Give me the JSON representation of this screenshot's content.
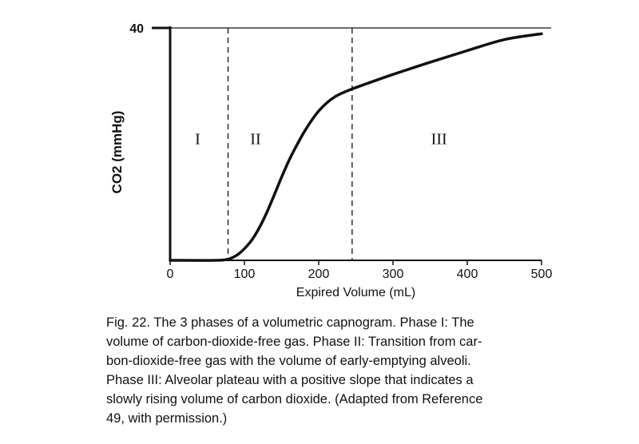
{
  "chart_data": {
    "type": "line",
    "xlabel": "Expired Volume (mL)",
    "ylabel": "CO2 (mmHg)",
    "xlim": [
      0,
      500
    ],
    "ylim": [
      0,
      40
    ],
    "x_ticks": [
      "0",
      "100",
      "200",
      "300",
      "400",
      "500"
    ],
    "y_ticks": [
      "40"
    ],
    "grid": false,
    "phase_boundaries": [
      78,
      245
    ],
    "phase_labels": [
      {
        "label": "I",
        "x": 37
      },
      {
        "label": "II",
        "x": 115
      },
      {
        "label": "III",
        "x": 362
      }
    ],
    "series": [
      {
        "x": [
          0,
          60,
          78,
          90,
          100,
          110,
          120,
          130,
          140,
          150,
          160,
          170,
          180,
          190,
          200,
          210,
          220,
          230,
          245,
          260,
          300,
          350,
          400,
          450,
          500
        ],
        "y": [
          0,
          0,
          0.2,
          0.9,
          2.0,
          3.5,
          5.6,
          8.2,
          11.2,
          14.3,
          17.2,
          19.7,
          22.0,
          24.0,
          25.7,
          27.0,
          28.0,
          28.7,
          29.5,
          30.2,
          32.0,
          34.1,
          36.1,
          38.0,
          39.0
        ]
      }
    ],
    "reference_line": {
      "y": 40,
      "label": "40"
    }
  },
  "caption": {
    "lines": [
      "Fig. 22. The 3 phases of a volumetric capnogram. Phase I: The",
      "volume of carbon-dioxide-free gas. Phase II: Transition from car-",
      "bon-dioxide-free gas with the volume of early-emptying alveoli.",
      "Phase III: Alveolar plateau with a positive slope that indicates a",
      "slowly rising volume of carbon dioxide. (Adapted from Reference",
      "49, with permission.)"
    ]
  }
}
